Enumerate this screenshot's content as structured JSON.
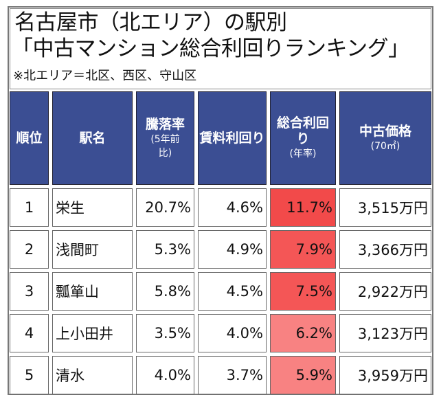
{
  "title": {
    "line1": "名古屋市（北エリア）の駅別",
    "line2": "「中古マンション総合利回りランキング」",
    "note": "※北エリア＝北区、西区、守山区"
  },
  "colors": {
    "header_bg": "#3b4e93",
    "highlight_strong": "#f45656",
    "highlight_light": "#f88282"
  },
  "table": {
    "headers": [
      {
        "main": "順位",
        "sub": ""
      },
      {
        "main": "駅名",
        "sub": ""
      },
      {
        "main": "騰落率",
        "sub": "(5年前比)"
      },
      {
        "main": "賃料利回り",
        "sub": ""
      },
      {
        "main": "総合利回り",
        "sub": "(年率)"
      },
      {
        "main": "中古価格",
        "sub": "(70㎡)"
      }
    ],
    "rows": [
      {
        "rank": "1",
        "station": "栄生",
        "change": "20.7%",
        "rent_yield": "4.6%",
        "total_yield": "11.7%",
        "price": "3,515万円"
      },
      {
        "rank": "2",
        "station": "浅間町",
        "change": "5.3%",
        "rent_yield": "4.9%",
        "total_yield": "7.9%",
        "price": "3,366万円"
      },
      {
        "rank": "3",
        "station": "瓢箪山",
        "change": "5.8%",
        "rent_yield": "4.5%",
        "total_yield": "7.5%",
        "price": "2,922万円"
      },
      {
        "rank": "4",
        "station": "上小田井",
        "change": "3.5%",
        "rent_yield": "4.0%",
        "total_yield": "6.2%",
        "price": "3,123万円"
      },
      {
        "rank": "5",
        "station": "清水",
        "change": "4.0%",
        "rent_yield": "3.7%",
        "total_yield": "5.9%",
        "price": "3,959万円"
      }
    ]
  }
}
